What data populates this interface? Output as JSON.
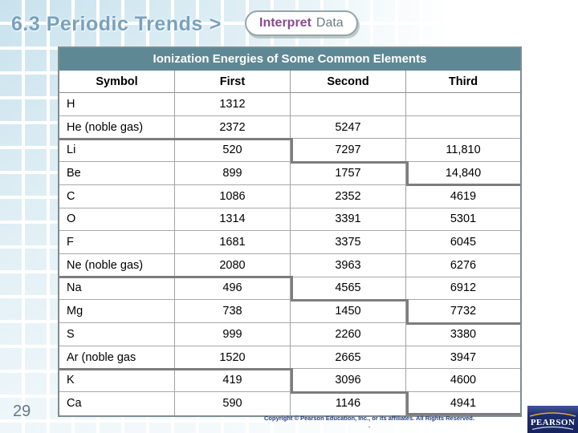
{
  "header": {
    "title": "6.3 Periodic Trends",
    "chevron": ">",
    "button": {
      "label_primary": "Interpret",
      "label_secondary": "Data"
    }
  },
  "table": {
    "title": "Ionization Energies of Some Common Elements",
    "columns": [
      "Symbol",
      "First",
      "Second",
      "Third"
    ],
    "rows": [
      {
        "symbol": "H",
        "first": "1312",
        "second": "",
        "third": ""
      },
      {
        "symbol": "He (noble gas)",
        "first": "2372",
        "second": "5247",
        "third": ""
      },
      {
        "symbol": "Li",
        "first": "520",
        "second": "7297",
        "third": "11,810"
      },
      {
        "symbol": "Be",
        "first": "899",
        "second": "1757",
        "third": "14,840"
      },
      {
        "symbol": "C",
        "first": "1086",
        "second": "2352",
        "third": "4619"
      },
      {
        "symbol": "O",
        "first": "1314",
        "second": "3391",
        "third": "5301"
      },
      {
        "symbol": "F",
        "first": "1681",
        "second": "3375",
        "third": "6045"
      },
      {
        "symbol": "Ne (noble gas)",
        "first": "2080",
        "second": "3963",
        "third": "6276"
      },
      {
        "symbol": "Na",
        "first": "496",
        "second": "4565",
        "third": "6912"
      },
      {
        "symbol": "Mg",
        "first": "738",
        "second": "1450",
        "third": "7732"
      },
      {
        "symbol": "S",
        "first": "999",
        "second": "2260",
        "third": "3380"
      },
      {
        "symbol": "Ar (noble gas",
        "first": "1520",
        "second": "2665",
        "third": "3947"
      },
      {
        "symbol": "K",
        "first": "419",
        "second": "3096",
        "third": "4600"
      },
      {
        "symbol": "Ca",
        "first": "590",
        "second": "1146",
        "third": "4941"
      }
    ]
  },
  "footer": {
    "page_number": "29",
    "copyright": "Copyright © Pearson Education, Inc., or its affiliates. All Rights Reserved.",
    "copyright_line2": ".",
    "logo_text": "PEARSON"
  },
  "colors": {
    "table_header_bg": "#5e8894",
    "accent_purple": "#8a4a8f",
    "title_blue": "#79a1bd",
    "step_border": "#7d7d7d"
  }
}
